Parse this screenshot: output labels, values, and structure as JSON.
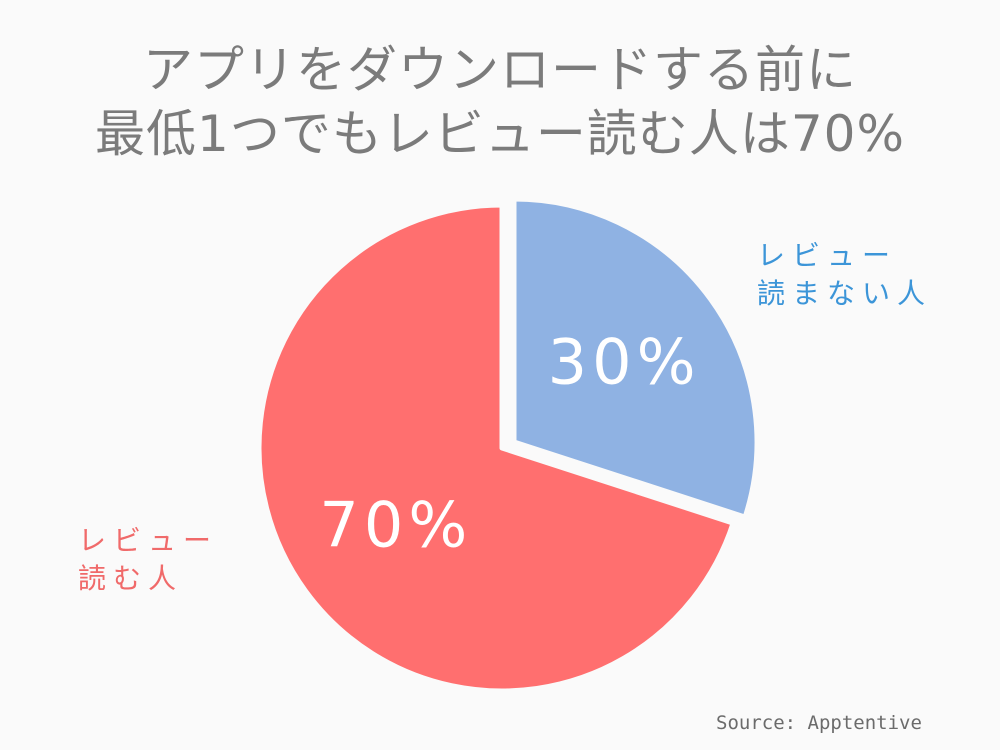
{
  "chart_data": {
    "type": "pie",
    "title_lines": [
      "アプリをダウンロードする前に",
      "最低1つでもレビュー読む人は70%"
    ],
    "slices": [
      {
        "label_lines": [
          "レビュー",
          "読まない人"
        ],
        "value": 30,
        "percent_label": "30%",
        "color": "#8fb2e3",
        "label_color": "#3c95d8"
      },
      {
        "label_lines": [
          "レビュー",
          "読む人"
        ],
        "value": 70,
        "percent_label": "70%",
        "color": "#ff6f6f",
        "label_color": "#f06a6a"
      }
    ],
    "start": "12-o'clock",
    "direction": "clockwise",
    "source": "Source: Apptentive"
  }
}
